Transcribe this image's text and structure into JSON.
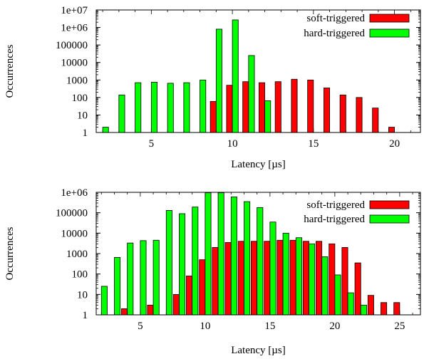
{
  "chart_data": [
    {
      "type": "bar",
      "xlabel": "Latency [µs]",
      "ylabel": "Occurrences",
      "xlim": [
        1.6,
        21.6
      ],
      "ylim": [
        1,
        10000000
      ],
      "yscale": "log",
      "grid": false,
      "legend_position": "top-right",
      "x_ticks": [
        5,
        10,
        15,
        20
      ],
      "y_ticks": [
        "1",
        "10",
        "100",
        "1000",
        "10000",
        "100000",
        "1e+06",
        "1e+07"
      ],
      "series": [
        {
          "name": "soft-triggered",
          "color": "#ff0000",
          "x": [
            8,
            9,
            10,
            11,
            12,
            13,
            14,
            15,
            16,
            17,
            18,
            19,
            20
          ],
          "values": [
            1,
            60,
            500,
            800,
            700,
            800,
            1100,
            1000,
            350,
            140,
            100,
            25,
            2
          ]
        },
        {
          "name": "hard-triggered",
          "color": "#00ff00",
          "x": [
            2,
            3,
            4,
            5,
            6,
            7,
            8,
            9,
            10,
            11,
            12
          ],
          "values": [
            2,
            140,
            700,
            750,
            650,
            700,
            1000,
            800000,
            2700000,
            25000,
            65
          ]
        }
      ]
    },
    {
      "type": "bar",
      "xlabel": "Latency [µs]",
      "ylabel": "Occurrences",
      "xlim": [
        1.6,
        26.6
      ],
      "ylim": [
        1,
        1000000
      ],
      "yscale": "log",
      "grid": false,
      "legend_position": "top-right",
      "x_ticks": [
        5,
        10,
        15,
        20,
        25
      ],
      "y_ticks": [
        "1",
        "10",
        "100",
        "1000",
        "10000",
        "100000",
        "1e+06"
      ],
      "series": [
        {
          "name": "soft-triggered",
          "color": "#ff0000",
          "x": [
            4,
            6,
            8,
            9,
            10,
            11,
            12,
            13,
            14,
            15,
            16,
            17,
            18,
            19,
            20,
            21,
            22,
            23,
            24,
            25
          ],
          "values": [
            2,
            3,
            10,
            80,
            500,
            2000,
            3500,
            4000,
            4000,
            4000,
            4500,
            4500,
            4000,
            4000,
            3000,
            2000,
            350,
            9,
            4,
            4
          ]
        },
        {
          "name": "hard-triggered",
          "color": "#00ff00",
          "x": [
            2,
            3,
            4,
            5,
            6,
            7,
            8,
            9,
            10,
            11,
            12,
            13,
            14,
            15,
            16,
            17,
            18,
            19,
            20,
            21,
            22
          ],
          "values": [
            25,
            650,
            3300,
            4300,
            4500,
            130000,
            90000,
            190000,
            950000,
            950000,
            600000,
            350000,
            180000,
            35000,
            10000,
            6000,
            3000,
            700,
            90,
            12,
            3
          ]
        }
      ]
    }
  ]
}
